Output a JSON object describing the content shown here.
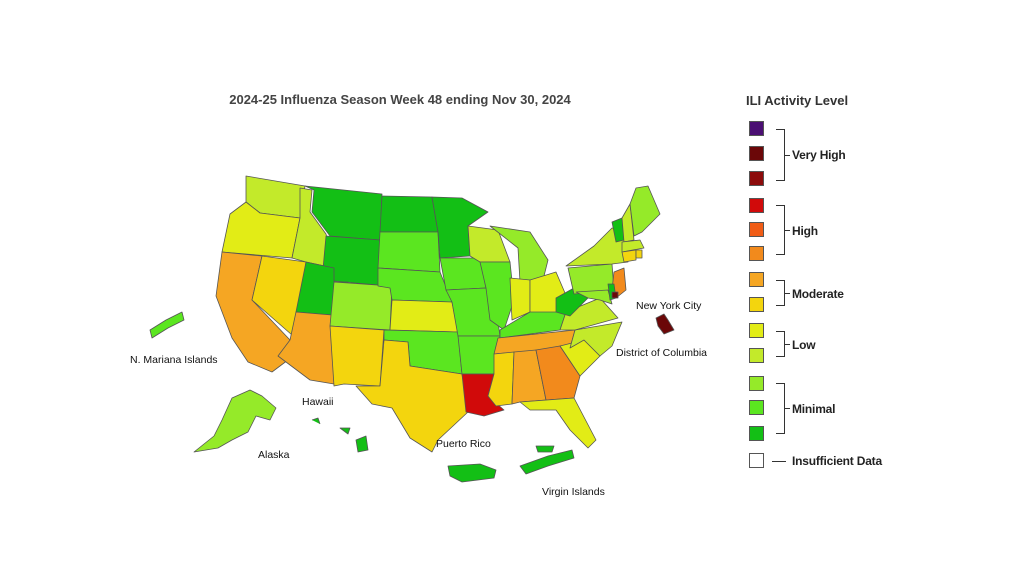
{
  "title": "2024-25 Influenza Season Week 48 ending Nov 30, 2024",
  "legend": {
    "title": "ILI Activity Level",
    "swatches": [
      "#4b0f73",
      "#6b0708",
      "#8c0b0b",
      "#d10a0a",
      "#f05c16",
      "#f28a1c",
      "#f5a623",
      "#f3d50e",
      "#e2ec16",
      "#c3ea2a",
      "#95ea29",
      "#5be620",
      "#13bf15",
      "#ffffff"
    ],
    "groups": [
      {
        "label": "Very High"
      },
      {
        "label": "High"
      },
      {
        "label": "Moderate"
      },
      {
        "label": "Low"
      },
      {
        "label": "Minimal"
      },
      {
        "label": "Insufficient Data"
      }
    ]
  },
  "labels": {
    "nyc": "New York City",
    "dc": "District of Columbia",
    "nmi": "N. Mariana Islands",
    "hawaii": "Hawaii",
    "alaska": "Alaska",
    "pr": "Puerto Rico",
    "vi": "Virgin Islands"
  },
  "colors": {
    "WA": "#c3ea2a",
    "OR": "#e2ec16",
    "CA": "#f5a623",
    "NV": "#f3d50e",
    "ID": "#c3ea2a",
    "MT": "#13bf15",
    "WY": "#13bf15",
    "UT": "#13bf15",
    "AZ": "#f5a623",
    "NM": "#f3d50e",
    "CO": "#95ea29",
    "ND": "#13bf15",
    "SD": "#5be620",
    "NE": "#5be620",
    "KS": "#e2ec16",
    "OK": "#5be620",
    "TX": "#f3d50e",
    "MN": "#13bf15",
    "IA": "#5be620",
    "MO": "#5be620",
    "AR": "#5be620",
    "LA": "#d10a0a",
    "WI": "#c3ea2a",
    "IL": "#5be620",
    "MS": "#f3d50e",
    "MI": "#95ea29",
    "IN": "#e2ec16",
    "KY": "#5be620",
    "TN": "#f5a623",
    "AL": "#f5a623",
    "GA": "#f28a1c",
    "FL": "#e2ec16",
    "OH": "#e2ec16",
    "WV": "#13bf15",
    "VA": "#c3ea2a",
    "NC": "#c3ea2a",
    "SC": "#e2ec16",
    "PA": "#95ea29",
    "NY": "#c3ea2a",
    "VT": "#13bf15",
    "NH": "#c3ea2a",
    "ME": "#95ea29",
    "MA": "#c3ea2a",
    "NJ": "#f28a1c",
    "MD": "#95ea29",
    "DE": "#13bf15",
    "CT": "#f3d50e",
    "RI": "#f3d50e",
    "NYC": "#6b0708",
    "AK": "#95ea29",
    "HI": "#13bf15",
    "PR": "#13bf15",
    "VI": "#13bf15",
    "NMI": "#5be620",
    "DC": "#6b0708"
  }
}
